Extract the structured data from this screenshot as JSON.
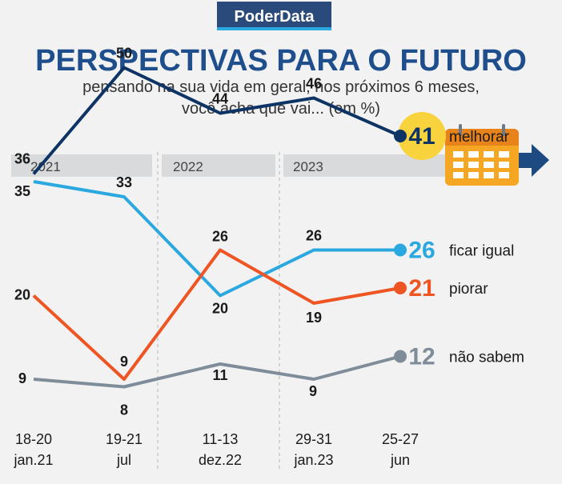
{
  "brand": "PoderData",
  "title": "PERSPECTIVAS PARA O FUTURO",
  "subtitle_line1": "pensando na sua vida em geral, nos próximos 6 meses,",
  "subtitle_line2": "você acha que vai... (em %)",
  "years": [
    "2021",
    "2022",
    "2023"
  ],
  "icon": "calendar-icon",
  "colors": {
    "melhorar": "#0d3465",
    "ficar_igual": "#2ba8df",
    "piorar": "#ee5523",
    "nao_sabem": "#7f8c99",
    "highlight": "#f9d33d",
    "brand_bg": "#2a4a7c"
  },
  "chart_data": {
    "type": "line",
    "categories": [
      [
        "18-20",
        "jan.21"
      ],
      [
        "19-21",
        "jul"
      ],
      [
        "11-13",
        "dez.22"
      ],
      [
        "29-31",
        "jan.23"
      ],
      [
        "25-27",
        "jun"
      ]
    ],
    "series": [
      {
        "name": "melhorar",
        "values": [
          36,
          50,
          44,
          46,
          41
        ]
      },
      {
        "name": "ficar igual",
        "values": [
          35,
          33,
          20,
          26,
          26
        ]
      },
      {
        "name": "piorar",
        "values": [
          20,
          9,
          26,
          19,
          21
        ]
      },
      {
        "name": "não sabem",
        "values": [
          9,
          8,
          11,
          9,
          12
        ]
      }
    ],
    "ylim": [
      5,
      55
    ],
    "grid": false,
    "legend": "right"
  }
}
